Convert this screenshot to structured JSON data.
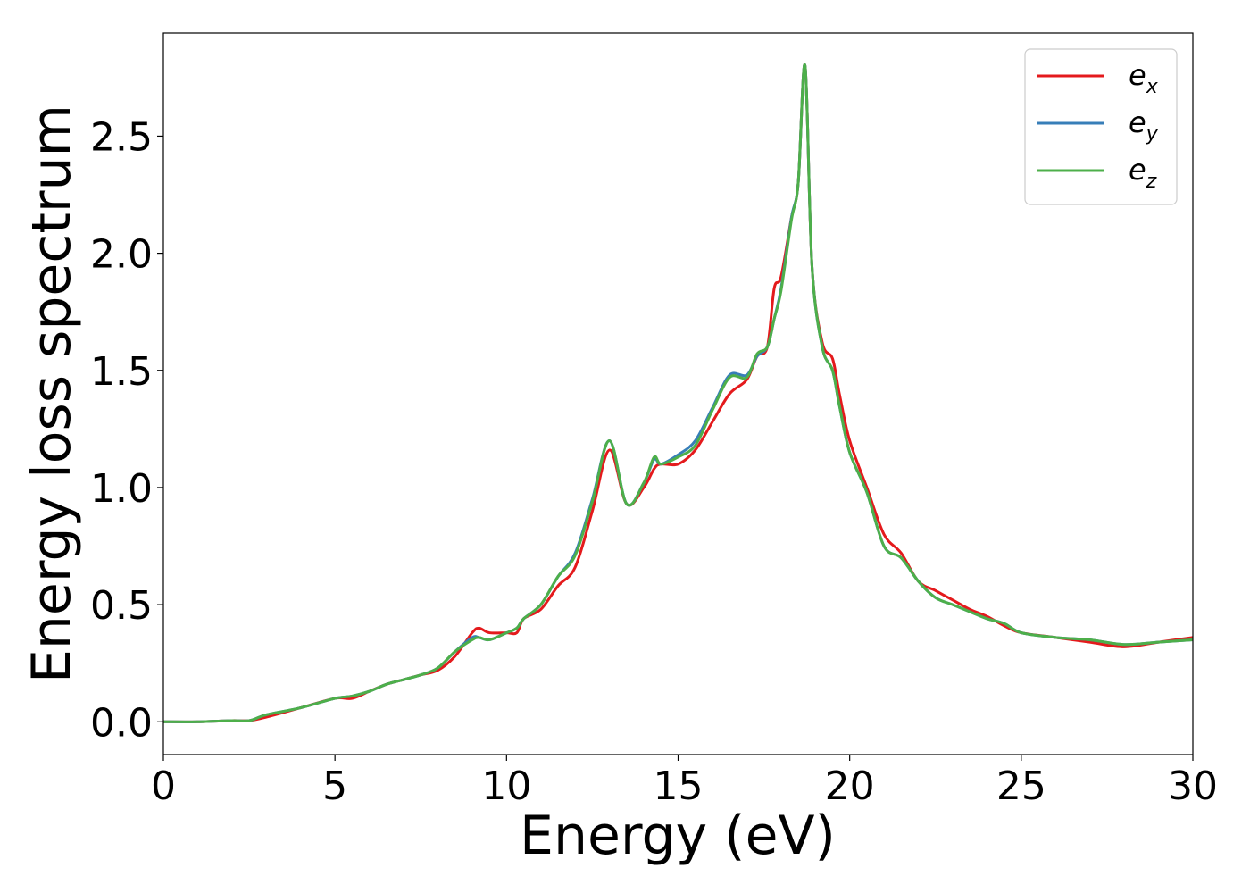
{
  "chart_data": {
    "type": "line",
    "title": "",
    "xlabel": "Energy (eV)",
    "ylabel": "Energy loss spectrum",
    "xlim": [
      0,
      30
    ],
    "ylim": [
      -0.14,
      2.94
    ],
    "xticks": [
      0,
      5,
      10,
      15,
      20,
      25,
      30
    ],
    "xtick_labels": [
      "0",
      "5",
      "10",
      "15",
      "20",
      "25",
      "30"
    ],
    "yticks": [
      0.0,
      0.5,
      1.0,
      1.5,
      2.0,
      2.5
    ],
    "ytick_labels": [
      "0.0",
      "0.5",
      "1.0",
      "1.5",
      "2.0",
      "2.5"
    ],
    "grid": false,
    "legend_position": "top-right",
    "series": [
      {
        "name": "e_x",
        "label_main": "e",
        "label_sub": "x",
        "color": "#e41a1c",
        "x": [
          0,
          1,
          2,
          2.5,
          3,
          4,
          5,
          5.5,
          6,
          6.5,
          7,
          7.5,
          8,
          8.5,
          9,
          9.2,
          9.5,
          10,
          10.3,
          10.5,
          11,
          11.5,
          12,
          12.5,
          13,
          13.5,
          14,
          14.3,
          14.5,
          15,
          15.5,
          16,
          16.5,
          17,
          17.3,
          17.6,
          17.8,
          18,
          18.3,
          18.5,
          18.7,
          18.9,
          19.2,
          19.5,
          19.7,
          20,
          20.5,
          21,
          21.5,
          22,
          22.5,
          23,
          23.5,
          24,
          24.5,
          25,
          26,
          27,
          28,
          29,
          30
        ],
        "y": [
          0,
          0,
          0.005,
          0.005,
          0.02,
          0.06,
          0.1,
          0.1,
          0.13,
          0.16,
          0.18,
          0.2,
          0.22,
          0.28,
          0.38,
          0.4,
          0.38,
          0.38,
          0.38,
          0.44,
          0.48,
          0.58,
          0.66,
          0.9,
          1.16,
          0.93,
          1.0,
          1.08,
          1.1,
          1.1,
          1.16,
          1.28,
          1.4,
          1.46,
          1.56,
          1.6,
          1.85,
          1.9,
          2.15,
          2.3,
          2.8,
          1.95,
          1.62,
          1.55,
          1.4,
          1.2,
          1.0,
          0.8,
          0.72,
          0.6,
          0.56,
          0.52,
          0.48,
          0.45,
          0.41,
          0.38,
          0.36,
          0.34,
          0.32,
          0.34,
          0.36
        ]
      },
      {
        "name": "e_y",
        "label_main": "e",
        "label_sub": "y",
        "color": "#377eb8",
        "x": [
          0,
          1,
          2,
          2.5,
          3,
          4,
          5,
          5.5,
          6,
          6.5,
          7,
          7.5,
          8,
          8.5,
          9,
          9.2,
          9.5,
          10,
          10.3,
          10.5,
          11,
          11.5,
          12,
          12.5,
          13,
          13.5,
          14,
          14.3,
          14.5,
          15,
          15.5,
          16,
          16.5,
          17,
          17.3,
          17.6,
          17.8,
          18,
          18.3,
          18.5,
          18.7,
          18.9,
          19.2,
          19.5,
          19.7,
          20,
          20.5,
          21,
          21.5,
          22,
          22.5,
          23,
          23.5,
          24,
          24.5,
          25,
          26,
          27,
          28,
          29,
          30
        ],
        "y": [
          0,
          0,
          0.005,
          0.005,
          0.03,
          0.06,
          0.1,
          0.11,
          0.13,
          0.16,
          0.18,
          0.2,
          0.23,
          0.3,
          0.36,
          0.36,
          0.35,
          0.38,
          0.4,
          0.44,
          0.5,
          0.62,
          0.72,
          0.95,
          1.2,
          0.93,
          1.02,
          1.12,
          1.1,
          1.14,
          1.2,
          1.34,
          1.48,
          1.48,
          1.56,
          1.6,
          1.72,
          1.85,
          2.15,
          2.3,
          2.8,
          1.95,
          1.6,
          1.5,
          1.35,
          1.15,
          0.98,
          0.75,
          0.7,
          0.6,
          0.53,
          0.5,
          0.47,
          0.44,
          0.42,
          0.38,
          0.36,
          0.35,
          0.33,
          0.34,
          0.35
        ]
      },
      {
        "name": "e_z",
        "label_main": "e",
        "label_sub": "z",
        "color": "#4daf4a",
        "x": [
          0,
          1,
          2,
          2.5,
          3,
          4,
          5,
          5.5,
          6,
          6.5,
          7,
          7.5,
          8,
          8.5,
          9,
          9.2,
          9.5,
          10,
          10.3,
          10.5,
          11,
          11.5,
          12,
          12.5,
          13,
          13.5,
          14,
          14.3,
          14.5,
          15,
          15.5,
          16,
          16.5,
          17,
          17.3,
          17.6,
          17.8,
          18,
          18.3,
          18.5,
          18.7,
          18.9,
          19.2,
          19.5,
          19.7,
          20,
          20.5,
          21,
          21.5,
          22,
          22.5,
          23,
          23.5,
          24,
          24.5,
          25,
          26,
          27,
          28,
          29,
          30
        ],
        "y": [
          0,
          0,
          0.005,
          0.005,
          0.03,
          0.06,
          0.1,
          0.11,
          0.13,
          0.16,
          0.18,
          0.2,
          0.23,
          0.3,
          0.35,
          0.36,
          0.35,
          0.38,
          0.4,
          0.44,
          0.5,
          0.62,
          0.71,
          0.94,
          1.2,
          0.93,
          1.02,
          1.13,
          1.1,
          1.13,
          1.18,
          1.33,
          1.47,
          1.47,
          1.57,
          1.6,
          1.72,
          1.84,
          2.14,
          2.3,
          2.8,
          1.95,
          1.6,
          1.5,
          1.35,
          1.15,
          0.98,
          0.75,
          0.7,
          0.6,
          0.53,
          0.5,
          0.47,
          0.44,
          0.42,
          0.38,
          0.36,
          0.35,
          0.33,
          0.34,
          0.35
        ]
      }
    ]
  }
}
